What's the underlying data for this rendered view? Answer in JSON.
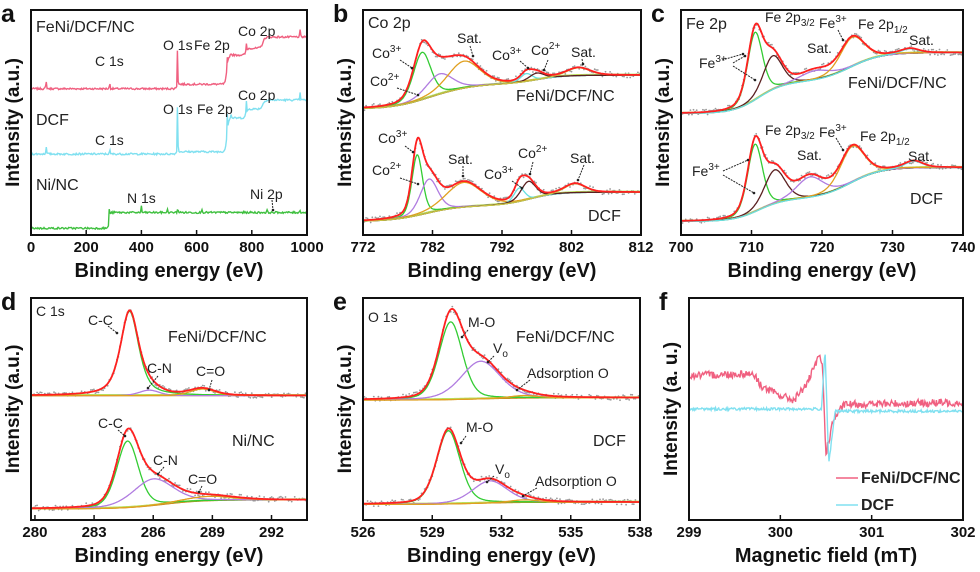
{
  "chart_data": [
    {
      "panel": "a",
      "type": "line",
      "title": "",
      "xlabel": "Binding energy (eV)",
      "ylabel": "Intensity (a.u.)",
      "xlim": [
        0,
        1000
      ],
      "xticks": [
        0,
        200,
        400,
        600,
        800,
        1000
      ],
      "ylim": [
        0,
        1
      ],
      "grid": false,
      "show_components": false,
      "series": [
        {
          "name": "FeNi/DCF/NC",
          "color": "#f06080",
          "baseline": 0.65,
          "steps": [
            [
              531,
              0.02,
              3
            ],
            [
              710,
              0.13,
              3
            ],
            [
              780,
              0.03,
              3
            ],
            [
              840,
              0.05,
              4
            ]
          ],
          "peaks": [
            [
              55,
              0.03,
              6
            ],
            [
              285,
              0.06,
              3
            ],
            [
              531,
              0.18,
              4
            ],
            [
              711,
              0.04,
              3
            ],
            [
              724,
              0.02,
              3
            ],
            [
              780,
              0.04,
              4
            ],
            [
              975,
              0.03,
              5
            ]
          ]
        },
        {
          "name": "DCF",
          "color": "#80e0f0",
          "baseline": 0.36,
          "steps": [
            [
              531,
              0.01,
              3
            ],
            [
              710,
              0.15,
              3
            ],
            [
              780,
              0.04,
              3
            ],
            [
              840,
              0.04,
              4
            ]
          ],
          "peaks": [
            [
              55,
              0.03,
              6
            ],
            [
              285,
              0.04,
              3
            ],
            [
              531,
              0.23,
              4
            ],
            [
              711,
              0.08,
              3
            ],
            [
              724,
              0.04,
              3
            ],
            [
              780,
              0.06,
              4
            ],
            [
              975,
              0.03,
              5
            ]
          ]
        },
        {
          "name": "Ni/NC",
          "color": "#40c040",
          "baseline": 0.03,
          "steps": [
            [
              285,
              0.07,
              2
            ]
          ],
          "peaks": [
            [
              284.5,
              0.3,
              2.5
            ],
            [
              400,
              0.03,
              3
            ],
            [
              495,
              0.02,
              3
            ],
            [
              532,
              0.05,
              3
            ],
            [
              620,
              0.02,
              4
            ],
            [
              855,
              0.01,
              5
            ],
            [
              975,
              0.01,
              5
            ]
          ]
        }
      ],
      "annotations": [
        {
          "text": "FeNi/DCF/NC"
        },
        {
          "text": "DCF"
        },
        {
          "text": "Ni/NC"
        },
        {
          "text": "C 1s"
        },
        {
          "text": "O 1s"
        },
        {
          "text": "Fe 2p"
        },
        {
          "text": "Co 2p"
        },
        {
          "text": "C 1s"
        },
        {
          "text": "O 1s"
        },
        {
          "text": "Fe 2p"
        },
        {
          "text": "Co 2p"
        },
        {
          "text": "N 1s"
        },
        {
          "text": "Ni 2p"
        }
      ]
    },
    {
      "panel": "b",
      "type": "line",
      "title": "Co 2p",
      "xlabel": "Binding energy (eV)",
      "ylabel": "Intensity (a.u.)",
      "xlim": [
        772,
        812
      ],
      "xticks": [
        772,
        782,
        792,
        802,
        812
      ],
      "ylim": [
        0,
        1
      ],
      "grid": false,
      "show_components": true,
      "series": [
        {
          "name": "FeNi/DCF/NC",
          "baseline": 0.56,
          "steps": [
            [
              781,
              0.09,
              2.5
            ],
            [
              786,
              0.02,
              2
            ],
            [
              797,
              0.04,
              2
            ]
          ],
          "components": [
            {
              "label": "Co3+",
              "center": 780.5,
              "height": 0.21,
              "fwhm": 3.0,
              "color": "#33cc33"
            },
            {
              "label": "Co2+",
              "center": 783.0,
              "height": 0.09,
              "fwhm": 4.5,
              "color": "#b07ce0"
            },
            {
              "label": "Sat.",
              "center": 786.5,
              "height": 0.12,
              "fwhm": 5.5,
              "color": "#e0a020"
            },
            {
              "label": "Co3+",
              "center": 795.5,
              "height": 0.035,
              "fwhm": 2.0,
              "color": "#66e0e0"
            },
            {
              "label": "Co2+",
              "center": 797.0,
              "height": 0.03,
              "fwhm": 2.5,
              "color": "#5a2020"
            },
            {
              "label": "Sat.",
              "center": 803.0,
              "height": 0.035,
              "fwhm": 4.0,
              "color": "#c8c040"
            }
          ]
        },
        {
          "name": "DCF",
          "baseline": 0.06,
          "steps": [
            [
              781,
              0.07,
              2.5
            ],
            [
              796,
              0.06,
              2
            ]
          ],
          "components": [
            {
              "label": "Co3+",
              "center": 779.8,
              "height": 0.27,
              "fwhm": 1.8,
              "color": "#33cc33"
            },
            {
              "label": "Co2+",
              "center": 781.5,
              "height": 0.15,
              "fwhm": 3.0,
              "color": "#b07ce0"
            },
            {
              "label": "Sat.",
              "center": 786.5,
              "height": 0.11,
              "fwhm": 6.0,
              "color": "#e0a020"
            },
            {
              "label": "Co3+",
              "center": 794.5,
              "height": 0.06,
              "fwhm": 1.8,
              "color": "#66e0e0"
            },
            {
              "label": "Co2+",
              "center": 795.8,
              "height": 0.08,
              "fwhm": 2.5,
              "color": "#5a2020"
            },
            {
              "label": "Sat.",
              "center": 802.5,
              "height": 0.04,
              "fwhm": 3.5,
              "color": "#c8c040"
            }
          ]
        }
      ],
      "annotations": [
        {
          "text": "Co 2p"
        },
        {
          "text": "Co",
          "sup": "3+"
        },
        {
          "text": "Co",
          "sup": "2+"
        },
        {
          "text": "Sat."
        },
        {
          "text": "Co",
          "sup": "3+"
        },
        {
          "text": "Co",
          "sup": "2+"
        },
        {
          "text": "Sat."
        },
        {
          "text": "FeNi/DCF/NC"
        },
        {
          "text": "Co",
          "sup": "3+"
        },
        {
          "text": "Co",
          "sup": "2+"
        },
        {
          "text": "Sat."
        },
        {
          "text": "Co",
          "sup": "3+"
        },
        {
          "text": "Co",
          "sup": "2+"
        },
        {
          "text": "Sat."
        },
        {
          "text": "DCF"
        }
      ]
    },
    {
      "panel": "c",
      "type": "line",
      "title": "Fe 2p",
      "xlabel": "Binding energy (eV)",
      "ylabel": "Intensity (a.u.)",
      "xlim": [
        700,
        740
      ],
      "xticks": [
        700,
        710,
        720,
        730,
        740
      ],
      "ylim": [
        0,
        1
      ],
      "grid": false,
      "show_components": true,
      "series": [
        {
          "name": "FeNi/DCF/NC",
          "baseline": 0.54,
          "steps": [
            [
              711,
              0.14,
              1.8
            ],
            [
              724,
              0.13,
              2.2
            ]
          ],
          "components": [
            {
              "label": "Fe3+",
              "center": 710.5,
              "height": 0.3,
              "fwhm": 2.5,
              "color": "#33cc33"
            },
            {
              "label": "Fe3+",
              "center": 713.0,
              "height": 0.15,
              "fwhm": 3.2,
              "color": "#5a2020"
            },
            {
              "label": "Sat.",
              "center": 719.0,
              "height": 0.04,
              "fwhm": 5.0,
              "color": "#b07ce0"
            },
            {
              "label": "Fe 2p1/2",
              "center": 724.3,
              "height": 0.13,
              "fwhm": 4.0,
              "color": "#e0a020"
            },
            {
              "label": "Sat.",
              "center": 732.5,
              "height": 0.02,
              "fwhm": 3.0,
              "color": "#66e0e0"
            }
          ]
        },
        {
          "name": "DCF",
          "baseline": 0.06,
          "steps": [
            [
              711,
              0.1,
              1.8
            ],
            [
              724,
              0.14,
              2.2
            ]
          ],
          "components": [
            {
              "label": "Fe3+",
              "center": 710.5,
              "height": 0.3,
              "fwhm": 2.5,
              "color": "#33cc33"
            },
            {
              "label": "Fe3+",
              "center": 713.3,
              "height": 0.15,
              "fwhm": 3.5,
              "color": "#5a2020"
            },
            {
              "label": "Sat.",
              "center": 718.3,
              "height": 0.09,
              "fwhm": 4.5,
              "color": "#b07ce0"
            },
            {
              "label": "Fe 2p1/2",
              "center": 724.3,
              "height": 0.16,
              "fwhm": 4.0,
              "color": "#e0a020"
            },
            {
              "label": "Sat.",
              "center": 733.0,
              "height": 0.03,
              "fwhm": 3.0,
              "color": "#66e0e0"
            }
          ]
        }
      ],
      "annotations": [
        {
          "text": "Fe 2p"
        },
        {
          "text": "Fe 2p",
          "sub": "3/2"
        },
        {
          "text": "Fe",
          "sup": "3+"
        },
        {
          "text": "Fe 2p",
          "sub": "1/2"
        },
        {
          "text": "Sat."
        },
        {
          "text": "Sat."
        },
        {
          "text": "Fe",
          "sup": "3+"
        },
        {
          "text": "FeNi/DCF/NC"
        },
        {
          "text": "Fe 2p",
          "sub": "3/2"
        },
        {
          "text": "Fe",
          "sup": "3+"
        },
        {
          "text": "Fe 2p",
          "sub": "1/2"
        },
        {
          "text": "Sat."
        },
        {
          "text": "Sat."
        },
        {
          "text": "Fe",
          "sup": "3+"
        },
        {
          "text": "DCF"
        }
      ]
    },
    {
      "panel": "d",
      "type": "line",
      "title": "C 1s",
      "xlabel": "Binding energy (eV)",
      "ylabel": "Intensity (a.u.)",
      "xlim": [
        279.8,
        293.8
      ],
      "xticks": [
        280,
        283,
        286,
        289,
        292
      ],
      "ylim": [
        0,
        1
      ],
      "grid": false,
      "show_components": true,
      "series": [
        {
          "name": "FeNi/DCF/NC",
          "baseline": 0.56,
          "steps": [],
          "components": [
            {
              "label": "C-C",
              "center": 284.8,
              "height": 0.38,
              "fwhm": 1.1,
              "color": "#33cc33",
              "eta": 0.6
            },
            {
              "label": "C-N",
              "center": 285.8,
              "height": 0.025,
              "fwhm": 1.2,
              "color": "#b07ce0"
            },
            {
              "label": "C=O",
              "center": 288.5,
              "height": 0.03,
              "fwhm": 1.5,
              "color": "#e0a020"
            }
          ]
        },
        {
          "name": "Ni/NC",
          "baseline": 0.05,
          "steps": [
            [
              286.5,
              0.04,
              1.0
            ]
          ],
          "components": [
            {
              "label": "C-C",
              "center": 284.7,
              "height": 0.3,
              "fwhm": 1.3,
              "color": "#33cc33"
            },
            {
              "label": "C-N",
              "center": 286.0,
              "height": 0.12,
              "fwhm": 2.4,
              "color": "#b07ce0"
            },
            {
              "label": "C=O",
              "center": 288.8,
              "height": 0.02,
              "fwhm": 3.0,
              "color": "#e0a020"
            }
          ]
        }
      ],
      "annotations": [
        {
          "text": "C 1s"
        },
        {
          "text": "C-C"
        },
        {
          "text": "FeNi/DCF/NC"
        },
        {
          "text": "C-N"
        },
        {
          "text": "C=O"
        },
        {
          "text": "C-C"
        },
        {
          "text": "Ni/NC"
        },
        {
          "text": "C-N"
        },
        {
          "text": "C=O"
        }
      ]
    },
    {
      "panel": "e",
      "type": "line",
      "title": "O 1s",
      "xlabel": "Binding energy (eV)",
      "ylabel": "Intensity (a.u.)",
      "xlim": [
        526,
        538
      ],
      "xticks": [
        526,
        529,
        532,
        535,
        538
      ],
      "ylim": [
        0,
        1
      ],
      "grid": false,
      "show_components": true,
      "series": [
        {
          "name": "FeNi/DCF/NC",
          "baseline": 0.54,
          "steps": [
            [
              531,
              0.01,
              1
            ]
          ],
          "components": [
            {
              "label": "M-O",
              "center": 529.8,
              "height": 0.35,
              "fwhm": 1.2,
              "color": "#33cc33"
            },
            {
              "label": "Vo",
              "center": 531.1,
              "height": 0.17,
              "fwhm": 2.0,
              "color": "#b07ce0"
            },
            {
              "label": "Adsorption O",
              "center": 533.0,
              "height": 0.012,
              "fwhm": 1.5,
              "color": "#e0a020"
            }
          ]
        },
        {
          "name": "DCF",
          "baseline": 0.07,
          "steps": [
            [
              531,
              0.01,
              1
            ]
          ],
          "components": [
            {
              "label": "M-O",
              "center": 529.7,
              "height": 0.33,
              "fwhm": 1.2,
              "color": "#33cc33"
            },
            {
              "label": "Vo",
              "center": 531.5,
              "height": 0.1,
              "fwhm": 1.8,
              "color": "#b07ce0"
            },
            {
              "label": "Adsorption O",
              "center": 533.0,
              "height": 0.012,
              "fwhm": 1.5,
              "color": "#e0a020"
            }
          ]
        }
      ],
      "annotations": [
        {
          "text": "O 1s"
        },
        {
          "text": "M-O"
        },
        {
          "text": "FeNi/DCF/NC"
        },
        {
          "text": "V",
          "sub": "o"
        },
        {
          "text": "Adsorption O"
        },
        {
          "text": "M-O"
        },
        {
          "text": "DCF"
        },
        {
          "text": "V",
          "sub": "o"
        },
        {
          "text": "Adsorption O"
        }
      ]
    },
    {
      "panel": "f",
      "type": "line",
      "title": "",
      "xlabel": "Magnetic field (mT)",
      "ylabel": "Intensity (a. u.)",
      "xlim": [
        299,
        302
      ],
      "xticks": [
        299,
        300,
        301,
        302
      ],
      "ylim": [
        0,
        1
      ],
      "grid": false,
      "legend": "bottom-right",
      "series": [
        {
          "name": "FeNi/DCF/NC",
          "color": "#f06080",
          "points": [
            [
              299,
              0.65
            ],
            [
              299.7,
              0.66
            ],
            [
              299.8,
              0.6
            ],
            [
              300.0,
              0.56
            ],
            [
              300.15,
              0.54
            ],
            [
              300.3,
              0.62
            ],
            [
              300.43,
              0.74
            ],
            [
              300.46,
              0.7
            ],
            [
              300.5,
              0.3
            ],
            [
              300.58,
              0.45
            ],
            [
              300.7,
              0.52
            ],
            [
              302,
              0.53
            ]
          ]
        },
        {
          "name": "DCF",
          "color": "#80e0f0",
          "points": [
            [
              299,
              0.5
            ],
            [
              300.45,
              0.5
            ],
            [
              300.49,
              0.77
            ],
            [
              300.53,
              0.25
            ],
            [
              300.6,
              0.49
            ],
            [
              302,
              0.49
            ]
          ]
        }
      ],
      "annotations": []
    }
  ]
}
